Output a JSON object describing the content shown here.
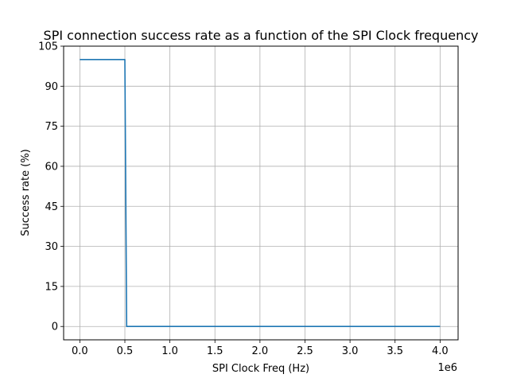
{
  "chart_data": {
    "type": "line",
    "title": "SPI connection success rate as a function of the SPI Clock frequency",
    "xlabel": "SPI Clock Freq (Hz)",
    "ylabel": "Success rate (%)",
    "x_offset_text": "1e6",
    "xlim": [
      -180000,
      4200000
    ],
    "ylim": [
      -5,
      105
    ],
    "x_ticks": [
      0,
      500000,
      1000000,
      1500000,
      2000000,
      2500000,
      3000000,
      3500000,
      4000000
    ],
    "x_tick_labels": [
      "0.0",
      "0.5",
      "1.0",
      "1.5",
      "2.0",
      "2.5",
      "3.0",
      "3.5",
      "4.0"
    ],
    "y_ticks": [
      0,
      15,
      30,
      45,
      60,
      75,
      90,
      105
    ],
    "y_tick_labels": [
      "0",
      "15",
      "30",
      "45",
      "60",
      "75",
      "90",
      "105"
    ],
    "grid": true,
    "series": [
      {
        "color": "#1f77b4",
        "x": [
          0,
          480000,
          500000,
          520000,
          1000000,
          1500000,
          2000000,
          2500000,
          3000000,
          3500000,
          4000000
        ],
        "y": [
          100,
          100,
          100,
          0,
          0,
          0,
          0,
          0,
          0,
          0,
          0
        ]
      }
    ]
  }
}
